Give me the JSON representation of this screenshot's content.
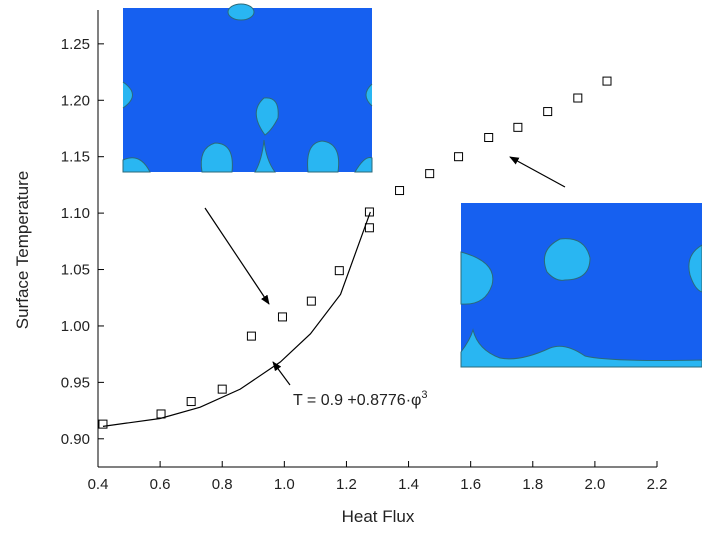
{
  "chart_data": {
    "type": "scatter",
    "x_label": "Heat Flux",
    "y_label": "Surface Temperature",
    "xlim": [
      0.4,
      2.2
    ],
    "ylim": [
      0.875,
      1.28
    ],
    "xticks": [
      0.4,
      0.6,
      0.8,
      {
        "value": 1.0,
        "label": "1.0"
      },
      1.2,
      1.4,
      1.6,
      1.8,
      {
        "value": 2.0,
        "label": "2.0"
      },
      2.2
    ],
    "yticks": [
      {
        "value": 0.9,
        "label": "0.90"
      },
      0.95,
      {
        "value": 1.0,
        "label": "1.00"
      },
      1.05,
      {
        "value": 1.1,
        "label": "1.10"
      },
      1.15,
      {
        "value": 1.2,
        "label": "1.20"
      },
      1.25
    ],
    "series": [
      {
        "style": "markers",
        "color": "#000000",
        "x": [
          0.416,
          0.603,
          0.7,
          0.8,
          0.894,
          0.994,
          1.087,
          1.177,
          1.274,
          1.274,
          1.371,
          1.468,
          1.561,
          1.658,
          1.752,
          1.848,
          1.945,
          2.039
        ],
        "values": [
          0.913,
          0.922,
          0.933,
          0.944,
          0.991,
          1.008,
          1.022,
          1.049,
          1.087,
          1.101,
          1.12,
          1.135,
          1.15,
          1.167,
          1.176,
          1.19,
          1.202,
          1.217
        ]
      },
      {
        "style": "line",
        "color": "#000000",
        "x": [
          0.416,
          0.6,
          0.729,
          0.858,
          0.987,
          1.084,
          1.181,
          1.277
        ],
        "values": [
          0.911,
          0.918,
          0.928,
          0.944,
          0.968,
          0.993,
          1.028,
          1.101
        ]
      }
    ],
    "annotation": {
      "text": "T = 0.9 +0.8776·φ",
      "superscript": "3"
    }
  }
}
